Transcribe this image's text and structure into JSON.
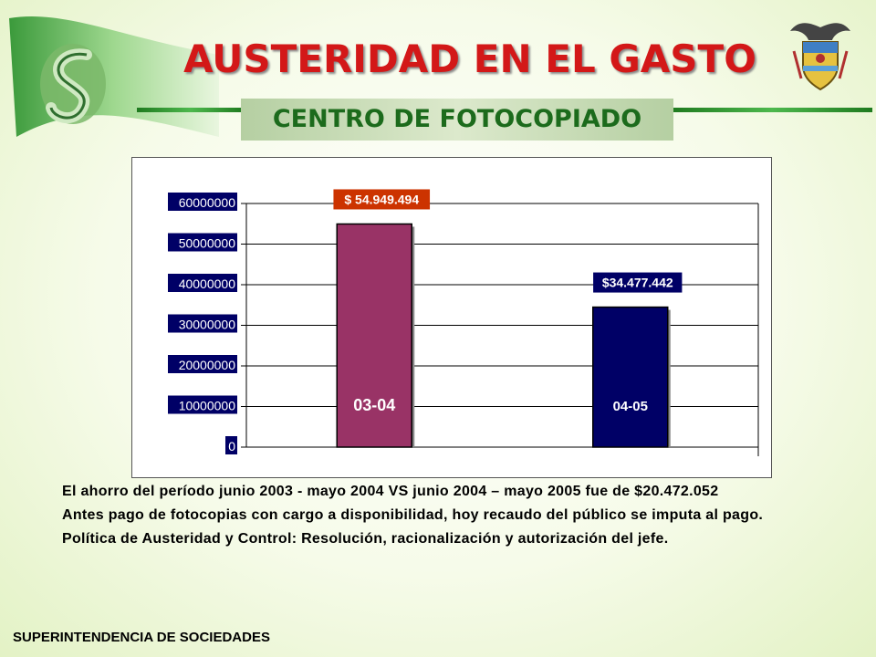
{
  "header": {
    "title": "AUSTERIDAD EN EL GASTO",
    "subtitle": "CENTRO DE FOTOCOPIADO"
  },
  "chart_data": {
    "type": "bar",
    "categories": [
      "03-04",
      "04-05"
    ],
    "values": [
      54949494,
      34477442
    ],
    "data_labels": [
      "$ 54.949.494",
      "$34.477.442"
    ],
    "bar_colors": [
      "#993366",
      "#000066"
    ],
    "label_colors": [
      "#cc3300",
      "#000066"
    ],
    "ylim": [
      0,
      60000000
    ],
    "yticks": [
      "0",
      "10000000",
      "20000000",
      "30000000",
      "40000000",
      "50000000",
      "60000000"
    ],
    "ytick_values": [
      0,
      10000000,
      20000000,
      30000000,
      40000000,
      50000000,
      60000000
    ],
    "grid": true,
    "title": "",
    "xlabel": "",
    "ylabel": ""
  },
  "body_text": {
    "p1": "El ahorro del período junio 2003 - mayo 2004 VS junio 2004 – mayo 2005 fue de $20.472.052",
    "p2": "Antes pago de fotocopias con cargo a disponibilidad, hoy recaudo del público se imputa al pago.",
    "p3": "Política de Austeridad y Control: Resolución, racionalización y autorización del jefe."
  },
  "footer": {
    "text": "SUPERINTENDENCIA DE SOCIEDADES"
  },
  "colors": {
    "title": "#d31818",
    "subtitle": "#1c6b1c",
    "accent_green": "#3a9a3a"
  }
}
